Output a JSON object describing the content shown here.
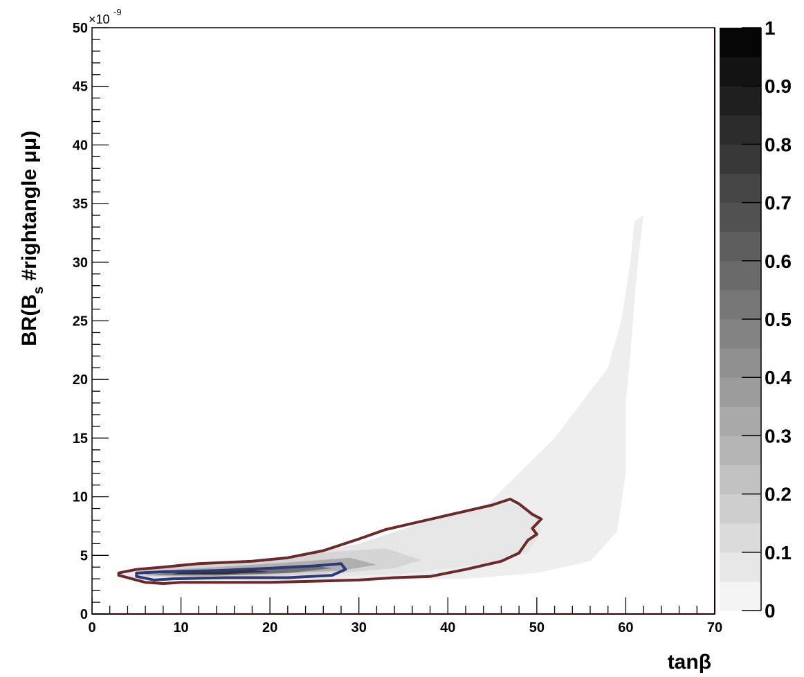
{
  "chart_data": {
    "type": "heatmap",
    "title": "",
    "xlabel": "tanβ",
    "ylabel": "BR(B_s #rightangle μμ)",
    "ylabel_main": "BR(B",
    "ylabel_sub": "s",
    "ylabel_rest": " #rightangle μμ)",
    "y_multiplier": "×10",
    "y_multiplier_exp": "-9",
    "xlim": [
      0,
      70
    ],
    "ylim": [
      0,
      50
    ],
    "x_ticks": [
      0,
      10,
      20,
      30,
      40,
      50,
      60,
      70
    ],
    "y_ticks": [
      0,
      5,
      10,
      15,
      20,
      25,
      30,
      35,
      40,
      45,
      50
    ],
    "colorbar": {
      "range": [
        0,
        1
      ],
      "ticks": [
        "0",
        "0.1",
        "0.2",
        "0.3",
        "0.4",
        "0.5",
        "0.6",
        "0.7",
        "0.8",
        "0.9",
        "1"
      ],
      "levels": 20,
      "colormap": "grayscale"
    },
    "density_regions": [
      {
        "level": 0.05,
        "polygon": [
          [
            3,
            3.1
          ],
          [
            10,
            3.0
          ],
          [
            20,
            2.8
          ],
          [
            28,
            3.0
          ],
          [
            36,
            3.0
          ],
          [
            42,
            3.0
          ],
          [
            50,
            3.5
          ],
          [
            56,
            4.5
          ],
          [
            59,
            7
          ],
          [
            60,
            12
          ],
          [
            60,
            18
          ],
          [
            60.5,
            22
          ],
          [
            61,
            27
          ],
          [
            61.5,
            31
          ],
          [
            62,
            34
          ],
          [
            61,
            33.5
          ],
          [
            60.5,
            30
          ],
          [
            59.5,
            25
          ],
          [
            58,
            21
          ],
          [
            55,
            18
          ],
          [
            52,
            15
          ],
          [
            48,
            12
          ],
          [
            44,
            9
          ],
          [
            38,
            7
          ],
          [
            30,
            5.5
          ],
          [
            20,
            4.5
          ],
          [
            10,
            4.0
          ],
          [
            4,
            3.7
          ]
        ]
      },
      {
        "level": 0.08,
        "polygon": [
          [
            4,
            3.2
          ],
          [
            10,
            3.1
          ],
          [
            20,
            3.1
          ],
          [
            28,
            3.2
          ],
          [
            36,
            3.5
          ],
          [
            44,
            4.3
          ],
          [
            49,
            5.2
          ],
          [
            50.5,
            7
          ],
          [
            50,
            8.5
          ],
          [
            47,
            9.5
          ],
          [
            42,
            8.8
          ],
          [
            36,
            7.5
          ],
          [
            30,
            6.0
          ],
          [
            22,
            4.8
          ],
          [
            14,
            4.2
          ],
          [
            6,
            3.8
          ]
        ]
      },
      {
        "level": 0.15,
        "polygon": [
          [
            5,
            3.2
          ],
          [
            12,
            3.1
          ],
          [
            20,
            3.2
          ],
          [
            28,
            3.5
          ],
          [
            34,
            3.9
          ],
          [
            37,
            4.6
          ],
          [
            33,
            5.6
          ],
          [
            27,
            5.3
          ],
          [
            20,
            4.7
          ],
          [
            12,
            4.2
          ],
          [
            6,
            3.8
          ]
        ]
      },
      {
        "level": 0.3,
        "polygon": [
          [
            6,
            3.3
          ],
          [
            12,
            3.2
          ],
          [
            20,
            3.4
          ],
          [
            28,
            3.7
          ],
          [
            32,
            4.2
          ],
          [
            29,
            4.8
          ],
          [
            22,
            4.4
          ],
          [
            14,
            4.0
          ],
          [
            7,
            3.7
          ]
        ]
      },
      {
        "level": 0.55,
        "polygon": [
          [
            7,
            3.35
          ],
          [
            14,
            3.3
          ],
          [
            22,
            3.5
          ],
          [
            27,
            3.9
          ],
          [
            24,
            4.2
          ],
          [
            16,
            3.8
          ],
          [
            9,
            3.6
          ]
        ]
      },
      {
        "level": 0.8,
        "polygon": [
          [
            9,
            3.4
          ],
          [
            15,
            3.4
          ],
          [
            20,
            3.6
          ],
          [
            17,
            3.8
          ],
          [
            11,
            3.65
          ]
        ]
      }
    ],
    "contours": [
      {
        "color": "#6b2a2a",
        "name": "",
        "polygon": [
          [
            3,
            3.3
          ],
          [
            6,
            2.7
          ],
          [
            8,
            2.6
          ],
          [
            10,
            2.7
          ],
          [
            20,
            2.7
          ],
          [
            25,
            2.8
          ],
          [
            30,
            2.9
          ],
          [
            34,
            3.1
          ],
          [
            38,
            3.2
          ],
          [
            42,
            3.8
          ],
          [
            46,
            4.5
          ],
          [
            48,
            5.2
          ],
          [
            49,
            6.3
          ],
          [
            50,
            6.8
          ],
          [
            49.5,
            7.3
          ],
          [
            50.5,
            8.1
          ],
          [
            49.5,
            8.5
          ],
          [
            48,
            9.4
          ],
          [
            47,
            9.8
          ],
          [
            45,
            9.3
          ],
          [
            41,
            8.6
          ],
          [
            37,
            7.9
          ],
          [
            33,
            7.2
          ],
          [
            30,
            6.4
          ],
          [
            26,
            5.4
          ],
          [
            22,
            4.8
          ],
          [
            18,
            4.5
          ],
          [
            12,
            4.3
          ],
          [
            8,
            4.0
          ],
          [
            5,
            3.8
          ],
          [
            3,
            3.5
          ]
        ]
      },
      {
        "color": "#2c3a7a",
        "name": "",
        "polygon": [
          [
            5,
            3.2
          ],
          [
            7,
            2.9
          ],
          [
            9,
            3.0
          ],
          [
            15,
            3.1
          ],
          [
            22,
            3.1
          ],
          [
            27,
            3.3
          ],
          [
            28.5,
            3.8
          ],
          [
            28,
            4.3
          ],
          [
            25,
            4.1
          ],
          [
            20,
            3.9
          ],
          [
            14,
            3.7
          ],
          [
            8,
            3.6
          ],
          [
            5,
            3.5
          ]
        ]
      }
    ]
  }
}
